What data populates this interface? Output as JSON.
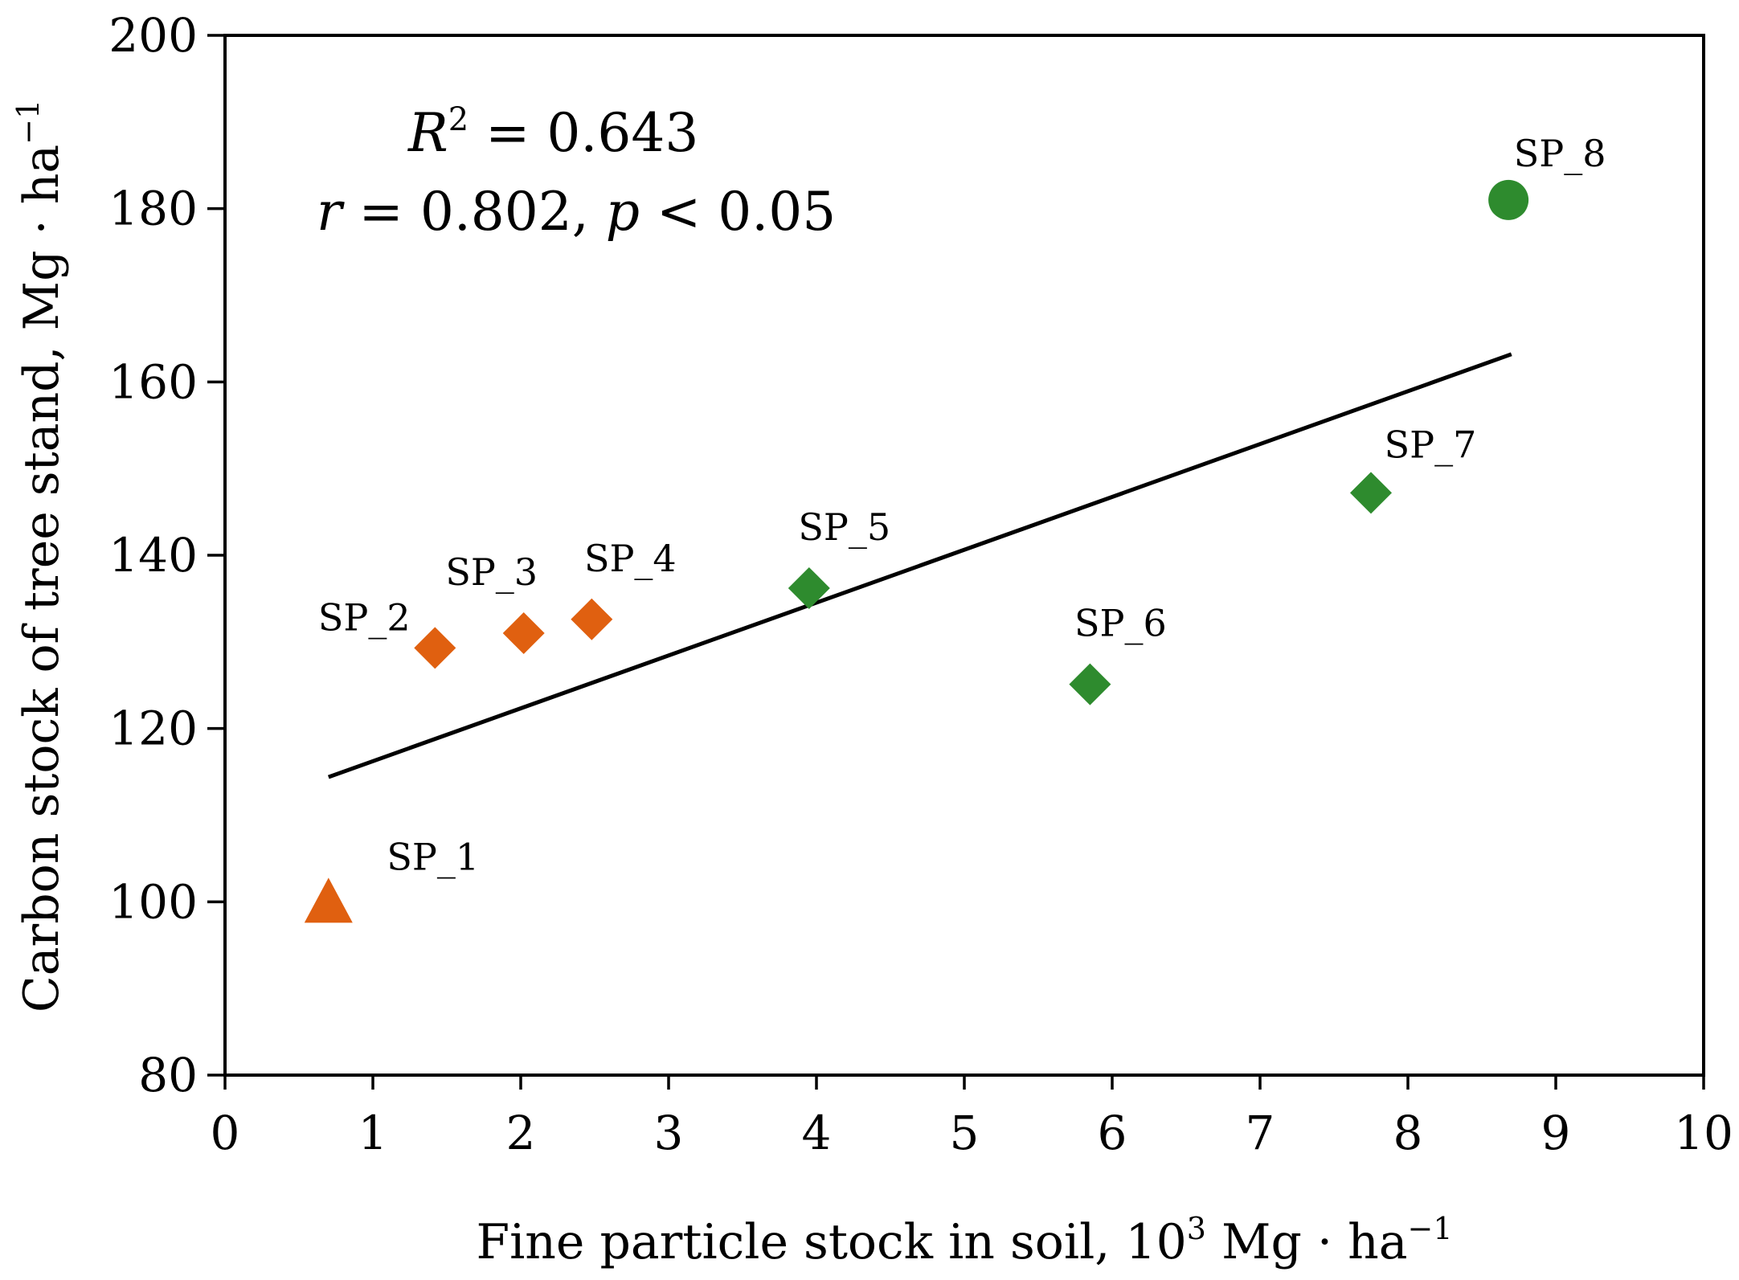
{
  "chart_data": {
    "type": "scatter",
    "xlabel": "Fine particle stock in soil, 10",
    "xlabel_sup": "3",
    "xlabel_suffix": " Mg · ha",
    "xlabel_suffix_sup": "−1",
    "ylabel": "Carbon stock of tree stand, Mg · ha",
    "ylabel_sup": "−1",
    "xlim": [
      0,
      10
    ],
    "ylim": [
      80,
      200
    ],
    "x_ticks": [
      0,
      1,
      2,
      3,
      4,
      5,
      6,
      7,
      8,
      9,
      10
    ],
    "y_ticks": [
      80,
      100,
      120,
      140,
      160,
      180,
      200
    ],
    "colors": {
      "orange": "#e06010",
      "green": "#2e8b2e"
    },
    "points": [
      {
        "label": "SP_1",
        "x": 0.7,
        "y": 100,
        "marker": "triangle",
        "color": "orange"
      },
      {
        "label": "SP_2",
        "x": 1.42,
        "y": 129.3,
        "marker": "diamond",
        "color": "orange"
      },
      {
        "label": "SP_3",
        "x": 2.02,
        "y": 131,
        "marker": "diamond",
        "color": "orange"
      },
      {
        "label": "SP_4",
        "x": 2.48,
        "y": 132.6,
        "marker": "diamond",
        "color": "orange"
      },
      {
        "label": "SP_5",
        "x": 3.95,
        "y": 136.2,
        "marker": "diamond",
        "color": "green"
      },
      {
        "label": "SP_6",
        "x": 5.85,
        "y": 125.1,
        "marker": "diamond",
        "color": "green"
      },
      {
        "label": "SP_7",
        "x": 7.75,
        "y": 147.2,
        "marker": "diamond",
        "color": "green"
      },
      {
        "label": "SP_8",
        "x": 8.68,
        "y": 181,
        "marker": "circle",
        "color": "green"
      }
    ],
    "trendline": {
      "x0": 0.7,
      "y0": 114.4,
      "x1": 8.7,
      "y1": 163.2
    },
    "annotations": {
      "r2_var": "R",
      "r2_sup": "2",
      "r2_value": " = 0.643",
      "r_var": "r",
      "r_value": " = 0.802, ",
      "p_var": "p",
      "p_value": " < 0.05"
    }
  }
}
